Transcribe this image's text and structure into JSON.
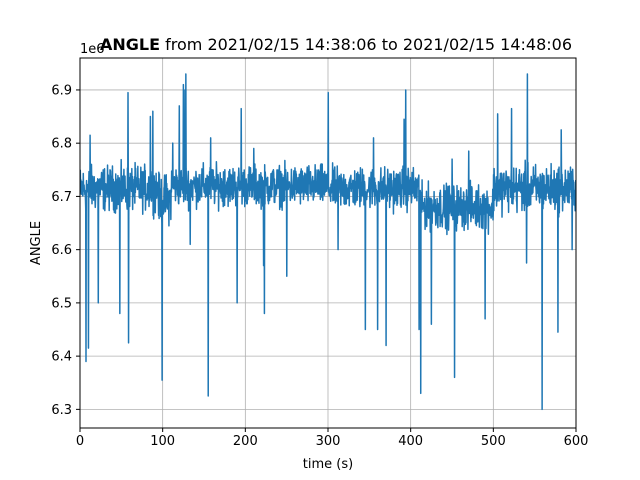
{
  "chart_data": {
    "type": "line",
    "title_bold": "ANGLE",
    "title_rest": " from 2021/02/15 14:38:06 to 2021/02/15 14:48:06",
    "xlabel": "time (s)",
    "ylabel": "ANGLE",
    "y_offset_label": "1e6",
    "xlim": [
      0,
      600
    ],
    "ylim": [
      6.265,
      6.96
    ],
    "x_ticks": [
      0,
      100,
      200,
      300,
      400,
      500,
      600
    ],
    "y_ticks": [
      6.3,
      6.4,
      6.5,
      6.6,
      6.7,
      6.8,
      6.9
    ],
    "grid": true,
    "series": [
      {
        "color": "#1f77b4",
        "segments": [
          {
            "x0": 0,
            "x1": 95,
            "center": 6.715,
            "amp": 0.055
          },
          {
            "x0": 95,
            "x1": 110,
            "center": 6.695,
            "amp": 0.06
          },
          {
            "x0": 110,
            "x1": 300,
            "center": 6.72,
            "amp": 0.05
          },
          {
            "x0": 300,
            "x1": 412,
            "center": 6.715,
            "amp": 0.052
          },
          {
            "x0": 412,
            "x1": 500,
            "center": 6.68,
            "amp": 0.055
          },
          {
            "x0": 500,
            "x1": 600,
            "center": 6.715,
            "amp": 0.058
          }
        ],
        "spikes": [
          [
            7,
            6.39
          ],
          [
            10,
            6.415
          ],
          [
            12,
            6.815
          ],
          [
            22,
            6.5
          ],
          [
            48,
            6.48
          ],
          [
            58,
            6.895
          ],
          [
            58.5,
            6.425
          ],
          [
            85,
            6.85
          ],
          [
            88,
            6.86
          ],
          [
            99,
            6.355
          ],
          [
            112,
            6.8
          ],
          [
            120,
            6.87
          ],
          [
            125,
            6.91
          ],
          [
            127,
            6.9
          ],
          [
            128,
            6.93
          ],
          [
            133,
            6.61
          ],
          [
            155,
            6.325
          ],
          [
            158,
            6.81
          ],
          [
            175,
            6.75
          ],
          [
            190,
            6.5
          ],
          [
            195,
            6.865
          ],
          [
            210,
            6.79
          ],
          [
            222,
            6.57
          ],
          [
            223,
            6.48
          ],
          [
            250,
            6.55
          ],
          [
            300,
            6.895
          ],
          [
            312,
            6.6
          ],
          [
            345,
            6.45
          ],
          [
            355,
            6.81
          ],
          [
            360,
            6.45
          ],
          [
            370,
            6.42
          ],
          [
            392,
            6.845
          ],
          [
            394,
            6.9
          ],
          [
            410,
            6.45
          ],
          [
            412,
            6.33
          ],
          [
            425,
            6.46
          ],
          [
            450,
            6.77
          ],
          [
            453,
            6.36
          ],
          [
            470,
            6.785
          ],
          [
            490,
            6.47
          ],
          [
            505,
            6.855
          ],
          [
            522,
            6.865
          ],
          [
            540,
            6.575
          ],
          [
            541,
            6.93
          ],
          [
            559,
            6.3
          ],
          [
            565,
            6.72
          ],
          [
            578,
            6.445
          ],
          [
            582,
            6.825
          ],
          [
            595,
            6.6
          ]
        ]
      }
    ]
  }
}
